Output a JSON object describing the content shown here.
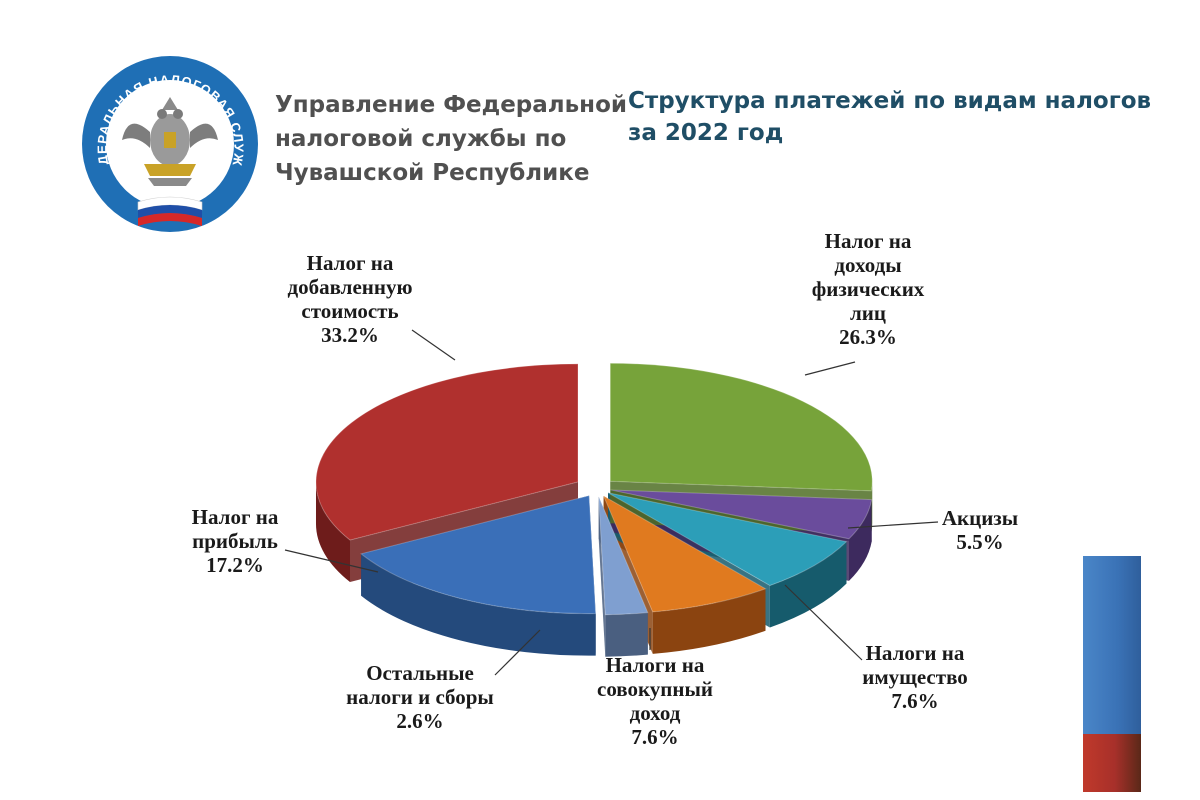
{
  "header": {
    "org_lines": [
      "Управление Федеральной",
      "налоговой службы по",
      "Чувашской Республике"
    ],
    "logo_ring_text": "ФЕДЕРАЛЬНАЯ НАЛОГОВАЯ СЛУЖБА",
    "title_lines": [
      "Структура платежей по видам налогов",
      "за 2022 год"
    ]
  },
  "colors": {
    "title": "#1f4e66",
    "org": "#505050",
    "logo_blue": "#1f6fb5"
  },
  "chart_data": {
    "type": "pie",
    "title": "Структура платежей по видам налогов за 2022 год",
    "unit": "%",
    "slices": [
      {
        "label": [
          "Налог на",
          "доходы",
          "физических",
          "лиц"
        ],
        "value": 26.3,
        "value_text": "26.3%",
        "color": "#77a33a",
        "dark": "#4f6f24"
      },
      {
        "label": [
          "Акцизы"
        ],
        "value": 5.5,
        "value_text": "5.5%",
        "color": "#6a4c9c",
        "dark": "#3d2a5e"
      },
      {
        "label": [
          "Налоги на",
          "имущество"
        ],
        "value": 7.6,
        "value_text": "7.6%",
        "color": "#2c9eb8",
        "dark": "#165b6c"
      },
      {
        "label": [
          "Налоги на",
          "совокупный",
          "доход"
        ],
        "value": 7.6,
        "value_text": "7.6%",
        "color": "#e07a1f",
        "dark": "#8b4410"
      },
      {
        "label": [
          "Остальные",
          "налоги и сборы"
        ],
        "value": 2.6,
        "value_text": "2.6%",
        "color": "#7f9fd0",
        "dark": "#4a5f80"
      },
      {
        "label": [
          "Налог  на",
          "прибыль"
        ],
        "value": 17.2,
        "value_text": "17.2%",
        "color": "#3a6fb8",
        "dark": "#244a7c"
      },
      {
        "label": [
          "Налог на",
          "добавленную",
          "стоимость"
        ],
        "value": 33.2,
        "value_text": "33.2%",
        "color": "#b0302e",
        "dark": "#6e1c1b"
      }
    ]
  }
}
